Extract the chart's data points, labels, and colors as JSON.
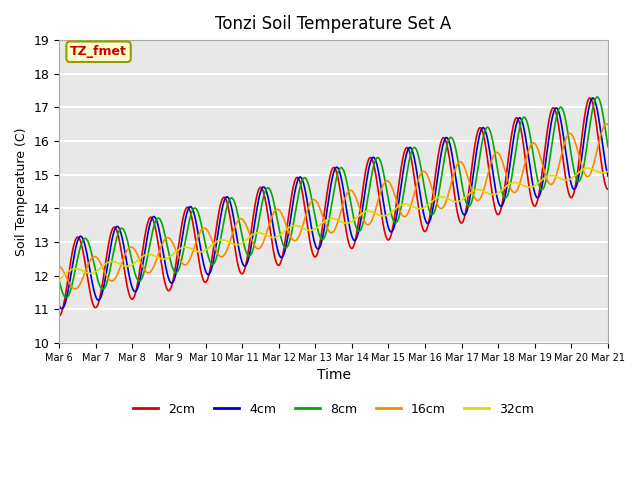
{
  "title": "Tonzi Soil Temperature Set A",
  "xlabel": "Time",
  "ylabel": "Soil Temperature (C)",
  "ylim": [
    10.0,
    19.0
  ],
  "yticks": [
    10.0,
    11.0,
    12.0,
    13.0,
    14.0,
    15.0,
    16.0,
    17.0,
    18.0,
    19.0
  ],
  "n_days": 15,
  "series": [
    {
      "label": "2cm",
      "color": "#dd0000"
    },
    {
      "label": "4cm",
      "color": "#0000cc"
    },
    {
      "label": "8cm",
      "color": "#00aa00"
    },
    {
      "label": "16cm",
      "color": "#ff8800"
    },
    {
      "label": "32cm",
      "color": "#dddd00"
    }
  ],
  "annotation_label": "TZ_fmet",
  "annotation_color": "#cc0000",
  "annotation_bg": "#ffffcc",
  "annotation_border": "#999900",
  "background_color": "#e8e8e8",
  "grid_color": "#ffffff",
  "xtick_labels": [
    "Mar 6",
    "Mar 7",
    "Mar 8",
    "Mar 9",
    "Mar 10",
    "Mar 11",
    "Mar 12",
    "Mar 13",
    "Mar 14",
    "Mar 15",
    "Mar 16",
    "Mar 17",
    "Mar 18",
    "Mar 19",
    "Mar 20",
    "Mar 21"
  ],
  "amplitudes": [
    1.1,
    1.0,
    0.8,
    0.4,
    0.12
  ],
  "lags": [
    0.0,
    0.08,
    0.2,
    0.45,
    0.9
  ],
  "trend_start": [
    11.9,
    12.0,
    12.1,
    11.9,
    12.0
  ],
  "trend_end": [
    16.0,
    16.1,
    16.2,
    15.8,
    15.2
  ],
  "trend_amp_grow": [
    1.0,
    1.0,
    1.0,
    1.0,
    1.0
  ]
}
